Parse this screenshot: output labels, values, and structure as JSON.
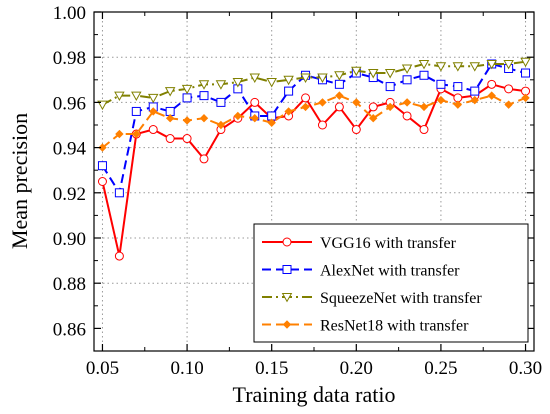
{
  "chart_data": {
    "type": "line",
    "xlabel": "Training data ratio",
    "ylabel": "Mean precision",
    "xlim": [
      0.045,
      0.305
    ],
    "ylim": [
      0.85,
      1.0
    ],
    "xticks": [
      0.05,
      0.1,
      0.15,
      0.2,
      0.25,
      0.3
    ],
    "xtick_labels": [
      "0.05",
      "0.10",
      "0.15",
      "0.20",
      "0.25",
      "0.30"
    ],
    "yticks": [
      0.86,
      0.88,
      0.9,
      0.92,
      0.94,
      0.96,
      0.98,
      1.0
    ],
    "ytick_labels": [
      "0.86",
      "0.88",
      "0.90",
      "0.92",
      "0.94",
      "0.96",
      "0.98",
      "1.00"
    ],
    "grid": true,
    "legend_position": "bottom-right",
    "x": [
      0.05,
      0.06,
      0.07,
      0.08,
      0.09,
      0.1,
      0.11,
      0.12,
      0.13,
      0.14,
      0.15,
      0.16,
      0.17,
      0.18,
      0.19,
      0.2,
      0.21,
      0.22,
      0.23,
      0.24,
      0.25,
      0.26,
      0.27,
      0.28,
      0.29,
      0.3
    ],
    "series": [
      {
        "name": "VGG16 with transfer",
        "color": "#ff0000",
        "line_style": "solid",
        "marker": "circle",
        "values": [
          0.925,
          0.892,
          0.946,
          0.948,
          0.944,
          0.944,
          0.935,
          0.948,
          0.953,
          0.96,
          0.953,
          0.954,
          0.962,
          0.95,
          0.958,
          0.948,
          0.958,
          0.96,
          0.954,
          0.948,
          0.966,
          0.962,
          0.963,
          0.968,
          0.966,
          0.965
        ]
      },
      {
        "name": "AlexNet with transfer",
        "color": "#0000ff",
        "line_style": "dashed",
        "marker": "square",
        "values": [
          0.932,
          0.92,
          0.956,
          0.958,
          0.956,
          0.962,
          0.963,
          0.96,
          0.966,
          0.954,
          0.954,
          0.965,
          0.972,
          0.97,
          0.968,
          0.973,
          0.971,
          0.967,
          0.97,
          0.972,
          0.968,
          0.967,
          0.965,
          0.977,
          0.975,
          0.973
        ]
      },
      {
        "name": "SqueezeNet with transfer",
        "color": "#808000",
        "line_style": "dashdot",
        "marker": "triangle-down",
        "values": [
          0.959,
          0.963,
          0.963,
          0.962,
          0.965,
          0.966,
          0.968,
          0.968,
          0.969,
          0.971,
          0.969,
          0.97,
          0.971,
          0.971,
          0.972,
          0.974,
          0.973,
          0.973,
          0.975,
          0.977,
          0.976,
          0.976,
          0.976,
          0.977,
          0.977,
          0.978
        ]
      },
      {
        "name": "ResNet18 with transfer",
        "color": "#ff8000",
        "line_style": "dashed",
        "marker": "diamond",
        "values": [
          0.94,
          0.946,
          0.946,
          0.956,
          0.953,
          0.952,
          0.953,
          0.95,
          0.954,
          0.953,
          0.951,
          0.956,
          0.958,
          0.96,
          0.963,
          0.96,
          0.953,
          0.958,
          0.96,
          0.958,
          0.961,
          0.959,
          0.961,
          0.963,
          0.959,
          0.962
        ]
      }
    ]
  }
}
